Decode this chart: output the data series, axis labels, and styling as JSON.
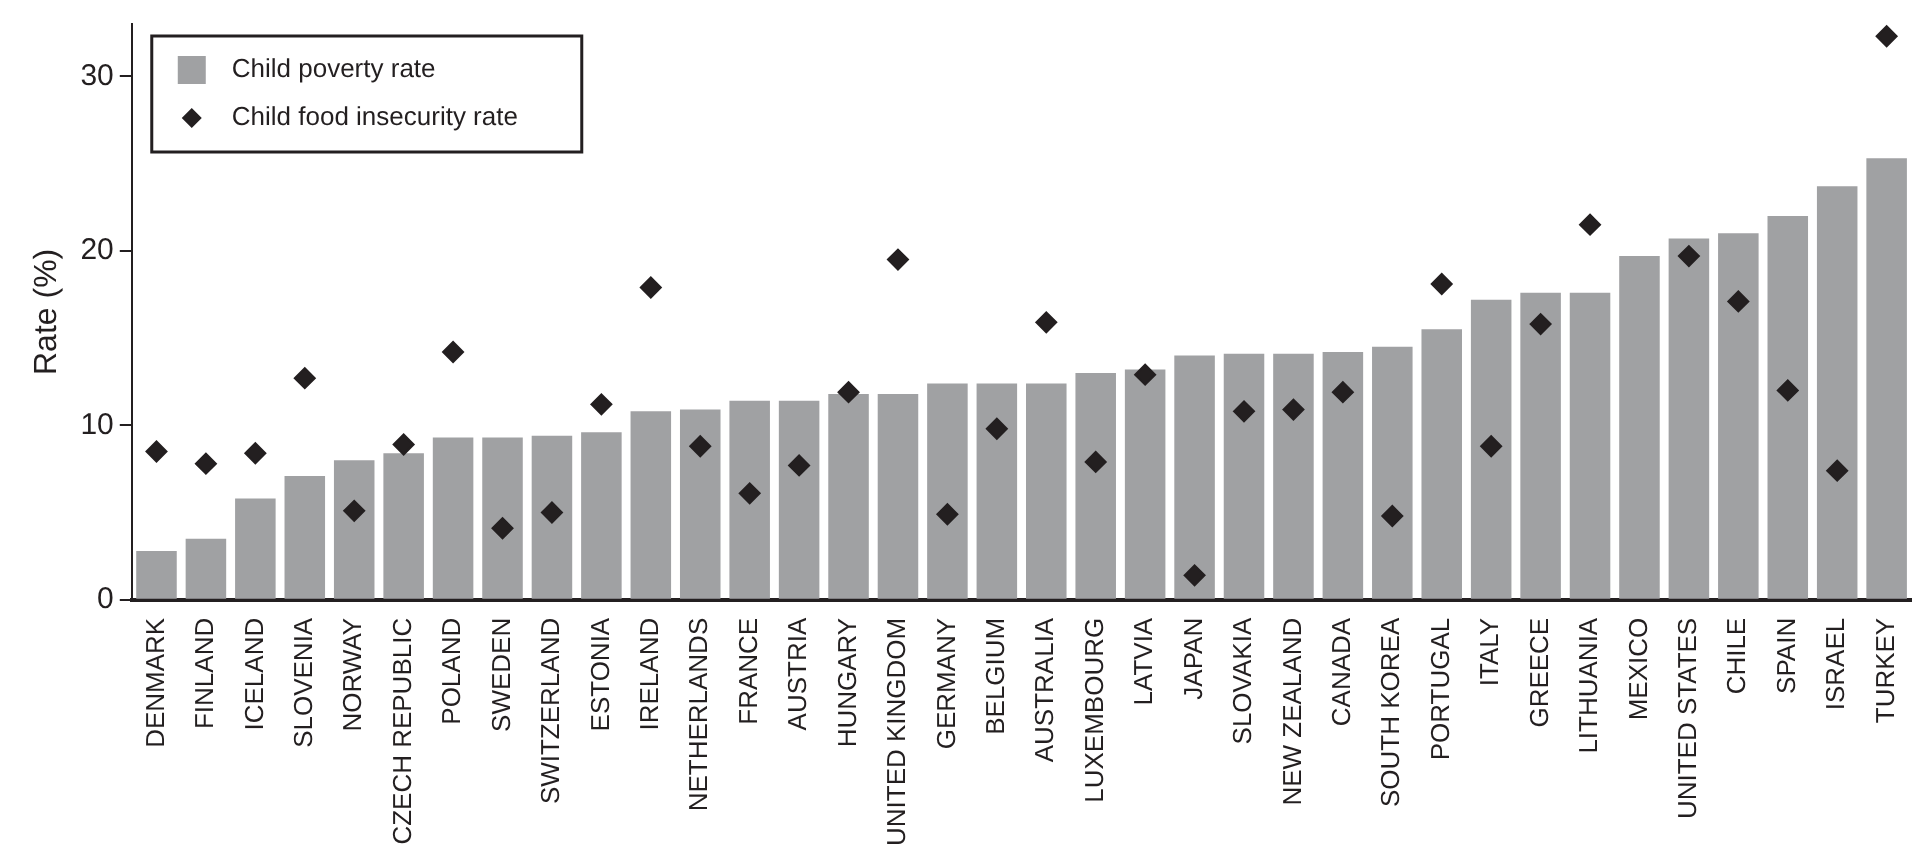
{
  "chart_data": {
    "type": "bar",
    "ylabel": "Rate (%)",
    "categories": [
      "DENMARK",
      "FINLAND",
      "ICELAND",
      "SLOVENIA",
      "NORWAY",
      "CZECH REPUBLIC",
      "POLAND",
      "SWEDEN",
      "SWITZERLAND",
      "ESTONIA",
      "IRELAND",
      "NETHERLANDS",
      "FRANCE",
      "AUSTRIA",
      "HUNGARY",
      "UNITED KINGDOM",
      "GERMANY",
      "BELGIUM",
      "AUSTRALIA",
      "LUXEMBOURG",
      "LATVIA",
      "JAPAN",
      "SLOVAKIA",
      "NEW ZEALAND",
      "CANADA",
      "SOUTH KOREA",
      "PORTUGAL",
      "ITALY",
      "GREECE",
      "LITHUANIA",
      "MEXICO",
      "UNITED STATES",
      "CHILE",
      "SPAIN",
      "ISRAEL",
      "TURKEY"
    ],
    "series": [
      {
        "name": "Child poverty rate",
        "color": "#a0a1a3",
        "values": [
          2.8,
          3.5,
          5.8,
          7.1,
          8.0,
          8.4,
          9.3,
          9.3,
          9.4,
          9.6,
          10.8,
          10.9,
          11.4,
          11.4,
          11.8,
          11.8,
          12.4,
          12.4,
          12.4,
          13.0,
          13.2,
          14.0,
          14.1,
          14.1,
          14.2,
          14.5,
          15.5,
          17.2,
          17.6,
          17.6,
          19.7,
          20.7,
          21.0,
          22.0,
          23.7,
          25.3
        ]
      },
      {
        "name": "Child food insecurity rate",
        "type": "scatter",
        "color": "#231f20",
        "values": [
          8.5,
          7.8,
          8.4,
          12.7,
          5.1,
          8.9,
          14.2,
          4.1,
          5.0,
          11.2,
          17.9,
          8.8,
          6.1,
          7.7,
          11.9,
          19.5,
          4.9,
          9.8,
          15.9,
          7.9,
          12.9,
          1.4,
          10.8,
          10.9,
          11.9,
          4.8,
          18.1,
          8.8,
          15.8,
          21.5,
          null,
          19.7,
          17.1,
          12.0,
          7.4,
          32.3
        ]
      }
    ],
    "ylim": [
      0,
      33
    ],
    "yticks": [
      0,
      10,
      20,
      30
    ],
    "grid": false,
    "legend": "top left",
    "marker": "diamond"
  }
}
